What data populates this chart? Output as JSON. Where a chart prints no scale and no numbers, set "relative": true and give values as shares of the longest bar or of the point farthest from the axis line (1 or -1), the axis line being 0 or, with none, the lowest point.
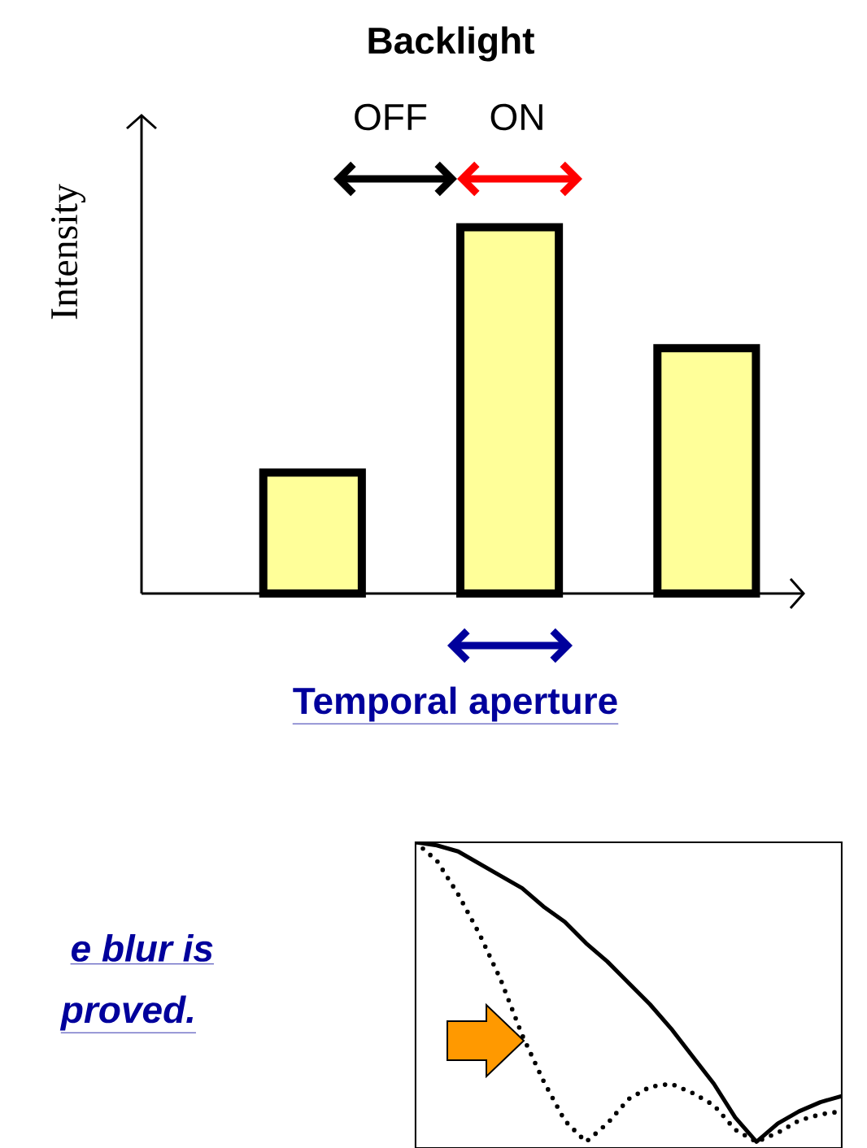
{
  "chart_data": [
    {
      "type": "bar",
      "title": "Backlight",
      "ylabel": "Intensity",
      "relative": true,
      "categories": [
        null,
        null,
        null
      ],
      "values": [
        0.33,
        1,
        0.67
      ],
      "color": "#ffff99",
      "annotations": [
        "OFF",
        "ON",
        "Temporal aperture"
      ]
    },
    {
      "type": "line",
      "relative": true,
      "categories": [
        null,
        null,
        null,
        null,
        null,
        null,
        null,
        null,
        null,
        null,
        null,
        null,
        null,
        null,
        null,
        null,
        null,
        null,
        null,
        null,
        null
      ],
      "series": [
        {
          "color": "#000000",
          "line_style": "solid",
          "values": [
            1.0,
            0.99,
            0.97,
            0.93,
            0.89,
            0.85,
            0.79,
            0.74,
            0.67,
            0.61,
            0.54,
            0.47,
            0.39,
            0.3,
            0.21,
            0.1,
            0.02,
            0.08,
            0.12,
            0.15,
            0.17
          ]
        },
        {
          "color": "#000000",
          "line_style": "dotted",
          "values": [
            1.0,
            0.94,
            0.83,
            0.7,
            0.55,
            0.37,
            0.22,
            0.09,
            0.02,
            0.08,
            0.16,
            0.2,
            0.21,
            0.18,
            0.14,
            0.06,
            0.02,
            0.05,
            0.09,
            0.11,
            0.12
          ]
        }
      ],
      "annotations": [
        "e blur is",
        "proved."
      ]
    }
  ]
}
